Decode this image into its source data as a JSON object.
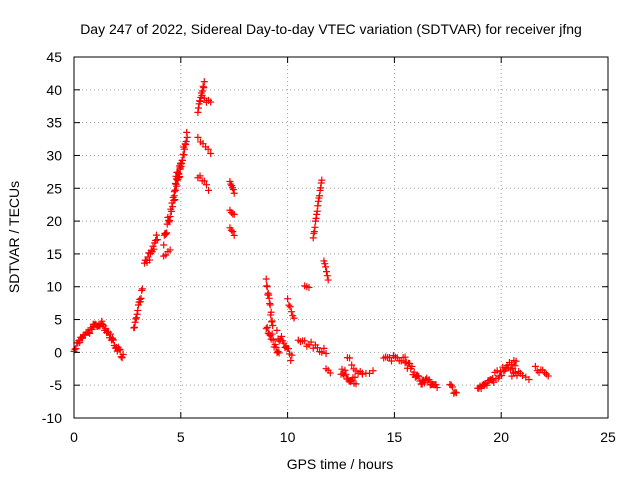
{
  "chart_data": {
    "type": "scatter",
    "title": "Day 247 of 2022, Sidereal Day-to-day VTEC variation (SDTVAR) for receiver jfng",
    "xlabel": "GPS time / hours",
    "ylabel": "SDTVAR / TECUs",
    "xlim": [
      0,
      25
    ],
    "ylim": [
      -10,
      45
    ],
    "xticks": [
      0,
      5,
      10,
      15,
      20,
      25
    ],
    "yticks": [
      -10,
      -5,
      0,
      5,
      10,
      15,
      20,
      25,
      30,
      35,
      40,
      45
    ],
    "xtick_labels": [
      "0",
      "5",
      "10",
      "15",
      "20",
      "25"
    ],
    "ytick_labels": [
      "-10",
      "-5",
      "0",
      "5",
      "10",
      "15",
      "20",
      "25",
      "30",
      "35",
      "40",
      "45"
    ],
    "grid": true,
    "marker": "+",
    "color": "#ff0000",
    "series": [
      {
        "name": "SDTVAR",
        "segments": [
          {
            "x0": 0.0,
            "x1": 0.4,
            "y0": 0.5,
            "y1": 2.5,
            "n": 10,
            "jitter": 0.8
          },
          {
            "x0": 0.4,
            "x1": 0.9,
            "y0": 2.5,
            "y1": 3.8,
            "n": 10,
            "jitter": 1.0
          },
          {
            "x0": 0.9,
            "x1": 1.3,
            "y0": 3.8,
            "y1": 4.5,
            "n": 10,
            "jitter": 0.8
          },
          {
            "x0": 1.3,
            "x1": 1.8,
            "y0": 4.2,
            "y1": 2.0,
            "n": 12,
            "jitter": 1.2
          },
          {
            "x0": 1.8,
            "x1": 2.3,
            "y0": 2.0,
            "y1": -0.8,
            "n": 12,
            "jitter": 1.2
          },
          {
            "x0": 2.8,
            "x1": 3.2,
            "y0": 3.5,
            "y1": 9.5,
            "n": 14,
            "jitter": 1.2
          },
          {
            "x0": 3.3,
            "x1": 3.9,
            "y0": 13.0,
            "y1": 17.5,
            "n": 16,
            "jitter": 1.5
          },
          {
            "x0": 4.2,
            "x1": 4.5,
            "y0": 14.5,
            "y1": 15.5,
            "n": 4,
            "jitter": 0.5
          },
          {
            "x0": 4.2,
            "x1": 5.0,
            "y0": 17.0,
            "y1": 28.0,
            "n": 30,
            "jitter": 2.0
          },
          {
            "x0": 4.7,
            "x1": 5.3,
            "y0": 25.0,
            "y1": 33.0,
            "n": 26,
            "jitter": 2.0
          },
          {
            "x0": 5.8,
            "x1": 6.1,
            "y0": 37.0,
            "y1": 41.0,
            "n": 12,
            "jitter": 1.0
          },
          {
            "x0": 6.1,
            "x1": 6.4,
            "y0": 38.5,
            "y1": 38.0,
            "n": 4,
            "jitter": 0.5
          },
          {
            "x0": 5.8,
            "x1": 6.4,
            "y0": 32.5,
            "y1": 30.5,
            "n": 6,
            "jitter": 0.5
          },
          {
            "x0": 5.8,
            "x1": 6.3,
            "y0": 27.0,
            "y1": 25.0,
            "n": 6,
            "jitter": 0.8
          },
          {
            "x0": 7.3,
            "x1": 7.5,
            "y0": 26.0,
            "y1": 24.5,
            "n": 6,
            "jitter": 0.6
          },
          {
            "x0": 7.3,
            "x1": 7.5,
            "y0": 21.5,
            "y1": 21.0,
            "n": 4,
            "jitter": 0.3
          },
          {
            "x0": 7.3,
            "x1": 7.5,
            "y0": 19.0,
            "y1": 18.0,
            "n": 4,
            "jitter": 0.5
          },
          {
            "x0": 9.0,
            "x1": 9.3,
            "y0": 10.5,
            "y1": 4.0,
            "n": 14,
            "jitter": 1.5
          },
          {
            "x0": 9.0,
            "x1": 9.6,
            "y0": 4.0,
            "y1": 0.0,
            "n": 14,
            "jitter": 1.5
          },
          {
            "x0": 9.5,
            "x1": 10.2,
            "y0": 3.0,
            "y1": -1.0,
            "n": 14,
            "jitter": 1.5
          },
          {
            "x0": 10.0,
            "x1": 10.3,
            "y0": 8.0,
            "y1": 5.0,
            "n": 6,
            "jitter": 0.8
          },
          {
            "x0": 10.5,
            "x1": 11.8,
            "y0": 2.0,
            "y1": 0.0,
            "n": 14,
            "jitter": 1.0
          },
          {
            "x0": 10.8,
            "x1": 11.0,
            "y0": 10.0,
            "y1": 10.0,
            "n": 3,
            "jitter": 0.3
          },
          {
            "x0": 11.2,
            "x1": 11.6,
            "y0": 17.5,
            "y1": 26.5,
            "n": 16,
            "jitter": 0.6
          },
          {
            "x0": 11.7,
            "x1": 11.9,
            "y0": 14.0,
            "y1": 11.0,
            "n": 6,
            "jitter": 0.5
          },
          {
            "x0": 11.8,
            "x1": 12.0,
            "y0": -2.5,
            "y1": -3.0,
            "n": 3,
            "jitter": 0.5
          },
          {
            "x0": 12.5,
            "x1": 13.2,
            "y0": -3.0,
            "y1": -4.5,
            "n": 16,
            "jitter": 1.5
          },
          {
            "x0": 12.8,
            "x1": 13.5,
            "y0": -1.0,
            "y1": -3.5,
            "n": 8,
            "jitter": 1.0
          },
          {
            "x0": 13.5,
            "x1": 14.0,
            "y0": -3.0,
            "y1": -3.0,
            "n": 4,
            "jitter": 0.5
          },
          {
            "x0": 14.5,
            "x1": 15.5,
            "y0": -1.0,
            "y1": -1.0,
            "n": 12,
            "jitter": 1.0
          },
          {
            "x0": 15.5,
            "x1": 16.3,
            "y0": -1.5,
            "y1": -4.5,
            "n": 16,
            "jitter": 1.2
          },
          {
            "x0": 16.3,
            "x1": 17.0,
            "y0": -4.0,
            "y1": -5.0,
            "n": 14,
            "jitter": 1.0
          },
          {
            "x0": 17.6,
            "x1": 17.9,
            "y0": -5.0,
            "y1": -6.5,
            "n": 6,
            "jitter": 1.0
          },
          {
            "x0": 18.9,
            "x1": 19.6,
            "y0": -5.5,
            "y1": -4.0,
            "n": 14,
            "jitter": 1.0
          },
          {
            "x0": 19.6,
            "x1": 20.7,
            "y0": -4.0,
            "y1": -1.5,
            "n": 22,
            "jitter": 1.5
          },
          {
            "x0": 20.5,
            "x1": 20.9,
            "y0": -3.5,
            "y1": -3.0,
            "n": 6,
            "jitter": 0.8
          },
          {
            "x0": 21.0,
            "x1": 21.3,
            "y0": -3.5,
            "y1": -4.0,
            "n": 3,
            "jitter": 0.5
          },
          {
            "x0": 21.6,
            "x1": 22.2,
            "y0": -2.5,
            "y1": -3.5,
            "n": 8,
            "jitter": 1.0
          }
        ]
      }
    ]
  }
}
